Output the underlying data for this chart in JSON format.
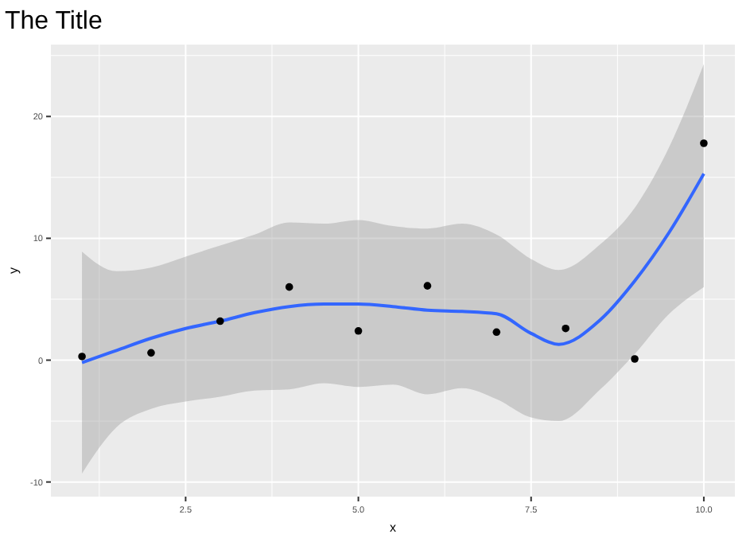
{
  "chart_data": {
    "type": "scatter",
    "title": "The Title",
    "xlabel": "x",
    "ylabel": "y",
    "xlim": [
      0.55,
      10.45
    ],
    "ylim": [
      -11.2,
      25.9
    ],
    "xticks": [
      2.5,
      {
        "value": 5,
        "label": "5.0"
      },
      7.5,
      {
        "value": 10,
        "label": "10.0"
      }
    ],
    "yticks": [
      -10,
      0,
      10,
      20
    ],
    "grid": true,
    "series": [
      {
        "type": "line",
        "color": "#3366ff",
        "marker": "none",
        "x": [
          1,
          1.5,
          2,
          2.5,
          3,
          3.5,
          4,
          4.5,
          5,
          5.5,
          6,
          6.5,
          7,
          7.5,
          7.9,
          8.5,
          9,
          9.5,
          10
        ],
        "values": [
          -0.2,
          0.8,
          1.8,
          2.6,
          3.2,
          3.9,
          4.4,
          4.6,
          4.6,
          4.4,
          4.1,
          4.0,
          3.8,
          2.2,
          1.3,
          3.3,
          6.5,
          10.5,
          15.3
        ],
        "lower": [
          -9.3,
          -5.5,
          -4.0,
          -3.4,
          -3.0,
          -2.5,
          -2.4,
          -1.9,
          -2.2,
          -2.0,
          -2.8,
          -2.3,
          -3.2,
          -4.7,
          -5.0,
          -2.4,
          0.5,
          3.8,
          6.0
        ],
        "upper": [
          8.9,
          7.3,
          7.6,
          8.5,
          9.4,
          10.3,
          11.3,
          11.2,
          11.5,
          11.0,
          10.8,
          11.2,
          10.3,
          8.3,
          7.4,
          9.5,
          12.5,
          17.5,
          24.3
        ]
      },
      {
        "color": "#000000",
        "marker": "circle",
        "x": [
          1,
          2,
          3,
          4,
          5,
          6,
          7,
          8,
          9,
          10
        ],
        "values": [
          0.3,
          0.6,
          3.2,
          6.0,
          2.4,
          6.1,
          2.3,
          2.6,
          0.1,
          17.8
        ]
      }
    ]
  }
}
